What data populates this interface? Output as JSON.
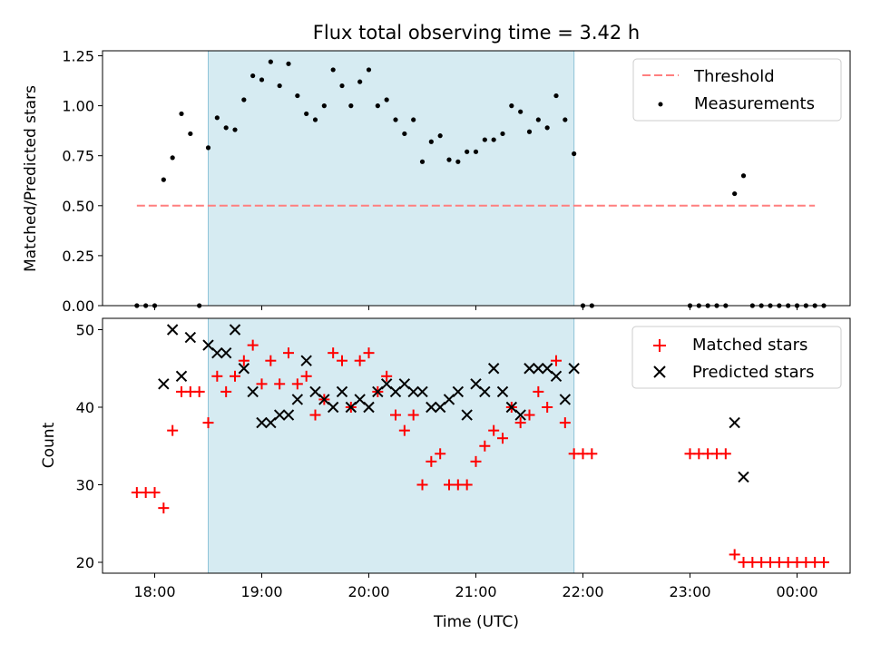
{
  "title": "Flux total observing time = 3.42 h",
  "chart_data": [
    {
      "type": "scatter",
      "ylabel": "Matched/Predicted stars",
      "ylim": [
        0,
        1.25
      ],
      "yticks": [
        "0.00",
        "0.25",
        "0.50",
        "0.75",
        "1.00",
        "1.25"
      ],
      "shaded_window": [
        "18:30",
        "21:55"
      ],
      "threshold": {
        "name": "Threshold",
        "value": 0.5,
        "x_range": [
          "17:50",
          "00:10"
        ],
        "color": "#ff7f7f"
      },
      "series": [
        {
          "name": "Measurements",
          "color": "#000000",
          "points": [
            [
              "17:50",
              0.0
            ],
            [
              "17:55",
              0.0
            ],
            [
              "18:00",
              0.0
            ],
            [
              "18:05",
              0.63
            ],
            [
              "18:10",
              0.74
            ],
            [
              "18:15",
              0.96
            ],
            [
              "18:20",
              0.86
            ],
            [
              "18:25",
              0.0
            ],
            [
              "18:30",
              0.79
            ],
            [
              "18:35",
              0.94
            ],
            [
              "18:40",
              0.89
            ],
            [
              "18:45",
              0.88
            ],
            [
              "18:50",
              1.03
            ],
            [
              "18:55",
              1.15
            ],
            [
              "19:00",
              1.13
            ],
            [
              "19:05",
              1.22
            ],
            [
              "19:10",
              1.1
            ],
            [
              "19:15",
              1.21
            ],
            [
              "19:20",
              1.05
            ],
            [
              "19:25",
              0.96
            ],
            [
              "19:30",
              0.93
            ],
            [
              "19:35",
              1.0
            ],
            [
              "19:40",
              1.18
            ],
            [
              "19:45",
              1.1
            ],
            [
              "19:50",
              1.0
            ],
            [
              "19:55",
              1.12
            ],
            [
              "20:00",
              1.18
            ],
            [
              "20:05",
              1.0
            ],
            [
              "20:10",
              1.03
            ],
            [
              "20:15",
              0.93
            ],
            [
              "20:20",
              0.86
            ],
            [
              "20:25",
              0.93
            ],
            [
              "20:30",
              0.72
            ],
            [
              "20:35",
              0.82
            ],
            [
              "20:40",
              0.85
            ],
            [
              "20:45",
              0.73
            ],
            [
              "20:50",
              0.72
            ],
            [
              "20:55",
              0.77
            ],
            [
              "21:00",
              0.77
            ],
            [
              "21:05",
              0.83
            ],
            [
              "21:10",
              0.83
            ],
            [
              "21:15",
              0.86
            ],
            [
              "21:20",
              1.0
            ],
            [
              "21:25",
              0.97
            ],
            [
              "21:30",
              0.87
            ],
            [
              "21:35",
              0.93
            ],
            [
              "21:40",
              0.89
            ],
            [
              "21:45",
              1.05
            ],
            [
              "21:50",
              0.93
            ],
            [
              "21:55",
              0.76
            ],
            [
              "22:00",
              0.0
            ],
            [
              "22:05",
              0.0
            ],
            [
              "23:00",
              0.0
            ],
            [
              "23:05",
              0.0
            ],
            [
              "23:10",
              0.0
            ],
            [
              "23:15",
              0.0
            ],
            [
              "23:20",
              0.0
            ],
            [
              "23:25",
              0.56
            ],
            [
              "23:30",
              0.65
            ],
            [
              "23:35",
              0.0
            ],
            [
              "23:40",
              0.0
            ],
            [
              "23:45",
              0.0
            ],
            [
              "23:50",
              0.0
            ],
            [
              "23:55",
              0.0
            ],
            [
              "00:00",
              0.0
            ],
            [
              "00:05",
              0.0
            ],
            [
              "00:10",
              0.0
            ],
            [
              "00:15",
              0.0
            ]
          ]
        }
      ],
      "legend": {
        "position": "top-right",
        "entries": [
          "Threshold",
          "Measurements"
        ]
      }
    },
    {
      "type": "scatter",
      "xlabel": "Time (UTC)",
      "ylabel": "Count",
      "ylim": [
        18.5,
        51.5
      ],
      "yticks": [
        "20",
        "30",
        "40",
        "50"
      ],
      "xlim": [
        "17:30",
        "00:30"
      ],
      "xticks": [
        "18:00",
        "19:00",
        "20:00",
        "21:00",
        "22:00",
        "23:00",
        "00:00"
      ],
      "shaded_window": [
        "18:30",
        "21:55"
      ],
      "series": [
        {
          "name": "Matched stars",
          "marker": "plus",
          "color": "#ff0000",
          "points": [
            [
              "17:50",
              29
            ],
            [
              "17:55",
              29
            ],
            [
              "18:00",
              29
            ],
            [
              "18:05",
              27
            ],
            [
              "18:10",
              37
            ],
            [
              "18:15",
              42
            ],
            [
              "18:20",
              42
            ],
            [
              "18:25",
              42
            ],
            [
              "18:30",
              38
            ],
            [
              "18:35",
              44
            ],
            [
              "18:40",
              42
            ],
            [
              "18:45",
              44
            ],
            [
              "18:50",
              46
            ],
            [
              "18:55",
              48
            ],
            [
              "19:00",
              43
            ],
            [
              "19:05",
              46
            ],
            [
              "19:10",
              43
            ],
            [
              "19:15",
              47
            ],
            [
              "19:20",
              43
            ],
            [
              "19:25",
              44
            ],
            [
              "19:30",
              39
            ],
            [
              "19:35",
              41
            ],
            [
              "19:40",
              47
            ],
            [
              "19:45",
              46
            ],
            [
              "19:50",
              40
            ],
            [
              "19:55",
              46
            ],
            [
              "20:00",
              47
            ],
            [
              "20:05",
              42
            ],
            [
              "20:10",
              44
            ],
            [
              "20:15",
              39
            ],
            [
              "20:20",
              37
            ],
            [
              "20:25",
              39
            ],
            [
              "20:30",
              30
            ],
            [
              "20:35",
              33
            ],
            [
              "20:40",
              34
            ],
            [
              "20:45",
              30
            ],
            [
              "20:50",
              30
            ],
            [
              "20:55",
              30
            ],
            [
              "21:00",
              33
            ],
            [
              "21:05",
              35
            ],
            [
              "21:10",
              37
            ],
            [
              "21:15",
              36
            ],
            [
              "21:20",
              40
            ],
            [
              "21:25",
              38
            ],
            [
              "21:30",
              39
            ],
            [
              "21:35",
              42
            ],
            [
              "21:40",
              40
            ],
            [
              "21:45",
              46
            ],
            [
              "21:50",
              38
            ],
            [
              "21:55",
              34
            ],
            [
              "22:00",
              34
            ],
            [
              "22:05",
              34
            ],
            [
              "23:00",
              34
            ],
            [
              "23:05",
              34
            ],
            [
              "23:10",
              34
            ],
            [
              "23:15",
              34
            ],
            [
              "23:20",
              34
            ],
            [
              "23:25",
              21
            ],
            [
              "23:30",
              20
            ],
            [
              "23:35",
              20
            ],
            [
              "23:40",
              20
            ],
            [
              "23:45",
              20
            ],
            [
              "23:50",
              20
            ],
            [
              "23:55",
              20
            ],
            [
              "00:00",
              20
            ],
            [
              "00:05",
              20
            ],
            [
              "00:10",
              20
            ],
            [
              "00:15",
              20
            ]
          ]
        },
        {
          "name": "Predicted stars",
          "marker": "x",
          "color": "#000000",
          "points": [
            [
              "18:05",
              43
            ],
            [
              "18:10",
              50
            ],
            [
              "18:15",
              44
            ],
            [
              "18:20",
              49
            ],
            [
              "18:30",
              48
            ],
            [
              "18:35",
              47
            ],
            [
              "18:40",
              47
            ],
            [
              "18:45",
              50
            ],
            [
              "18:50",
              45
            ],
            [
              "18:55",
              42
            ],
            [
              "19:00",
              38
            ],
            [
              "19:05",
              38
            ],
            [
              "19:10",
              39
            ],
            [
              "19:15",
              39
            ],
            [
              "19:20",
              41
            ],
            [
              "19:25",
              46
            ],
            [
              "19:30",
              42
            ],
            [
              "19:35",
              41
            ],
            [
              "19:40",
              40
            ],
            [
              "19:45",
              42
            ],
            [
              "19:50",
              40
            ],
            [
              "19:55",
              41
            ],
            [
              "20:00",
              40
            ],
            [
              "20:05",
              42
            ],
            [
              "20:10",
              43
            ],
            [
              "20:15",
              42
            ],
            [
              "20:20",
              43
            ],
            [
              "20:25",
              42
            ],
            [
              "20:30",
              42
            ],
            [
              "20:35",
              40
            ],
            [
              "20:40",
              40
            ],
            [
              "20:45",
              41
            ],
            [
              "20:50",
              42
            ],
            [
              "20:55",
              39
            ],
            [
              "21:00",
              43
            ],
            [
              "21:05",
              42
            ],
            [
              "21:10",
              45
            ],
            [
              "21:15",
              42
            ],
            [
              "21:20",
              40
            ],
            [
              "21:25",
              39
            ],
            [
              "21:30",
              45
            ],
            [
              "21:35",
              45
            ],
            [
              "21:40",
              45
            ],
            [
              "21:45",
              44
            ],
            [
              "21:50",
              41
            ],
            [
              "21:55",
              45
            ],
            [
              "23:25",
              38
            ],
            [
              "23:30",
              31
            ]
          ]
        }
      ],
      "legend": {
        "position": "top-right",
        "entries": [
          "Matched stars",
          "Predicted stars"
        ]
      }
    }
  ]
}
